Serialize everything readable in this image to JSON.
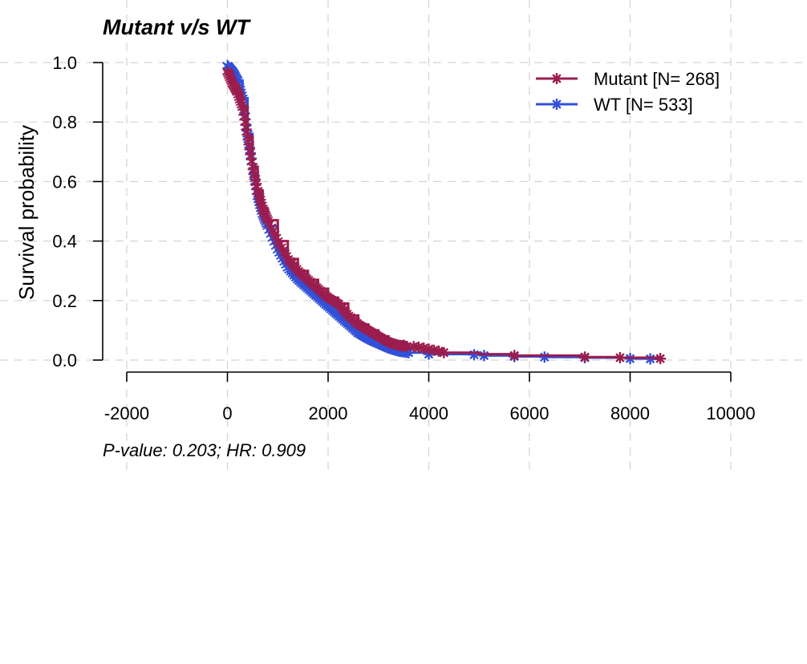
{
  "chart_data": {
    "type": "line",
    "title": "Mutant v/s WT",
    "xlabel": "",
    "ylabel": "Survival probability",
    "annotation": "P-value: 0.203; HR: 0.909",
    "xlim": [
      -2000,
      10000
    ],
    "ylim": [
      0,
      1
    ],
    "x_ticks": [
      "-2000",
      "0",
      "2000",
      "4000",
      "6000",
      "8000",
      "10000"
    ],
    "y_ticks": [
      "0.0",
      "0.2",
      "0.4",
      "0.6",
      "0.8",
      "1.0"
    ],
    "grid": true,
    "legend_position": "top-right",
    "series": [
      {
        "name": "Mutant [N= 268]",
        "color": "#9b1d4e",
        "x": [
          0,
          100,
          200,
          300,
          400,
          500,
          600,
          700,
          800,
          1000,
          1200,
          1400,
          1600,
          1800,
          2000,
          2200,
          2400,
          2600,
          2800,
          3000,
          3200,
          3400,
          3600,
          3800,
          4000,
          4300,
          5000,
          5700,
          7000,
          7800,
          8600
        ],
        "y": [
          0.97,
          0.93,
          0.9,
          0.85,
          0.75,
          0.65,
          0.57,
          0.51,
          0.47,
          0.4,
          0.34,
          0.3,
          0.27,
          0.24,
          0.21,
          0.19,
          0.15,
          0.12,
          0.1,
          0.08,
          0.06,
          0.05,
          0.045,
          0.04,
          0.035,
          0.025,
          0.02,
          0.015,
          0.01,
          0.008,
          0.005
        ],
        "censor_x": [
          3500,
          3700,
          3800,
          3900,
          4000,
          4100,
          4200,
          4300,
          5700,
          7100,
          7800,
          8600
        ],
        "censor_y": [
          0.05,
          0.045,
          0.043,
          0.04,
          0.037,
          0.033,
          0.03,
          0.025,
          0.015,
          0.01,
          0.008,
          0.005
        ]
      },
      {
        "name": "WT [N= 533]",
        "color": "#3150d8",
        "x": [
          0,
          100,
          200,
          300,
          400,
          500,
          600,
          700,
          800,
          1000,
          1200,
          1400,
          1600,
          1800,
          2000,
          2200,
          2400,
          2600,
          2800,
          3000,
          3200,
          3400,
          3600,
          4000,
          4900,
          5100,
          5700,
          6300,
          7100,
          8000,
          8400,
          8600
        ],
        "y": [
          0.99,
          0.97,
          0.94,
          0.88,
          0.76,
          0.65,
          0.55,
          0.49,
          0.45,
          0.37,
          0.31,
          0.27,
          0.24,
          0.21,
          0.18,
          0.15,
          0.12,
          0.09,
          0.07,
          0.055,
          0.04,
          0.03,
          0.025,
          0.02,
          0.018,
          0.015,
          0.012,
          0.01,
          0.008,
          0.005,
          0.004,
          0.003
        ],
        "censor_x": [
          3600,
          4000,
          4900,
          5100,
          5700,
          6300,
          7100,
          8000,
          8400
        ],
        "censor_y": [
          0.025,
          0.02,
          0.018,
          0.015,
          0.012,
          0.01,
          0.008,
          0.005,
          0.004
        ]
      }
    ]
  }
}
